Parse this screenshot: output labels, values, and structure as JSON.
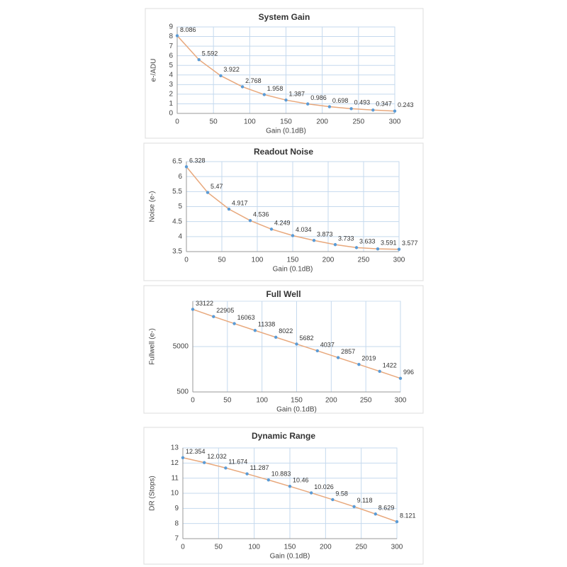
{
  "chart_data": [
    {
      "type": "line",
      "title": "System Gain",
      "x_label": "Gain (0.1dB)",
      "y_label": "e-/ADU",
      "x": [
        0,
        30,
        60,
        90,
        120,
        150,
        180,
        210,
        240,
        270,
        300
      ],
      "values": [
        8.086,
        5.592,
        3.922,
        2.768,
        1.958,
        1.387,
        0.986,
        0.698,
        0.493,
        0.347,
        0.243
      ],
      "xlim": [
        0,
        300
      ],
      "xticks": [
        0,
        50,
        100,
        150,
        200,
        250,
        300
      ],
      "ylim": [
        0,
        9
      ],
      "yticks": [
        0,
        1,
        2,
        3,
        4,
        5,
        6,
        7,
        8,
        9
      ],
      "color": "#e8a87c",
      "marker_color": "#5b9bd5",
      "grid": true,
      "log_y": false
    },
    {
      "type": "line",
      "title": "Readout Noise",
      "x_label": "Gain (0.1dB)",
      "y_label": "Noise (e-)",
      "x": [
        0,
        30,
        60,
        90,
        120,
        150,
        180,
        210,
        240,
        270,
        300
      ],
      "values": [
        6.328,
        5.47,
        4.917,
        4.536,
        4.249,
        4.034,
        3.873,
        3.733,
        3.633,
        3.591,
        3.577
      ],
      "xlim": [
        0,
        300
      ],
      "xticks": [
        0,
        50,
        100,
        150,
        200,
        250,
        300
      ],
      "ylim": [
        3.5,
        6.5
      ],
      "yticks": [
        3.5,
        4,
        4.5,
        5,
        5.5,
        6,
        6.5
      ],
      "color": "#e8a87c",
      "marker_color": "#5b9bd5",
      "grid": true,
      "log_y": false
    },
    {
      "type": "line",
      "title": "Full Well",
      "x_label": "Gain (0.1dB)",
      "y_label": "Fullwell (e-)",
      "x": [
        0,
        30,
        60,
        90,
        120,
        150,
        180,
        210,
        240,
        270,
        300
      ],
      "values": [
        33122,
        22905,
        16063,
        11338,
        8022,
        5682,
        4037,
        2857,
        2019,
        1422,
        996
      ],
      "xlim": [
        0,
        300
      ],
      "xticks": [
        0,
        50,
        100,
        150,
        200,
        250,
        300
      ],
      "ylim": [
        500,
        50000
      ],
      "yticks": [
        500,
        5000
      ],
      "color": "#e8a87c",
      "marker_color": "#5b9bd5",
      "grid": true,
      "log_y": true
    },
    {
      "type": "line",
      "title": "Dynamic Range",
      "x_label": "Gain (0.1dB)",
      "y_label": "DR (Stops)",
      "x": [
        0,
        30,
        60,
        90,
        120,
        150,
        180,
        210,
        240,
        270,
        300
      ],
      "values": [
        12.354,
        12.032,
        11.674,
        11.287,
        10.883,
        10.46,
        10.026,
        9.58,
        9.118,
        8.629,
        8.121
      ],
      "xlim": [
        0,
        300
      ],
      "xticks": [
        0,
        50,
        100,
        150,
        200,
        250,
        300
      ],
      "ylim": [
        7,
        13
      ],
      "yticks": [
        7,
        8,
        9,
        10,
        11,
        12,
        13
      ],
      "color": "#e8a87c",
      "marker_color": "#5b9bd5",
      "grid": true,
      "log_y": false
    }
  ]
}
